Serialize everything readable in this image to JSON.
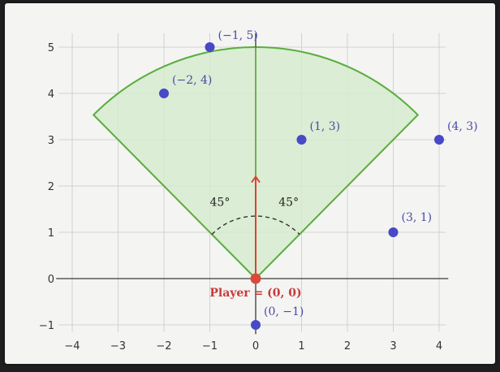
{
  "diagram": {
    "x_ticks": [
      "−4",
      "−3",
      "−2",
      "−1",
      "0",
      "1",
      "2",
      "3",
      "4"
    ],
    "y_ticks": [
      "−1",
      "0",
      "1",
      "2",
      "3",
      "4",
      "5"
    ],
    "x_range": [
      -4,
      4
    ],
    "y_range": [
      -1,
      5
    ],
    "cone": {
      "radius": 5,
      "half_angle_deg": 45,
      "fill": "#d6ebcf",
      "stroke": "#5aad3f"
    },
    "angle_labels": [
      "45°",
      "45°"
    ],
    "player": {
      "label": "Player",
      "coords": "(0, 0)",
      "x": 0,
      "y": 0,
      "color": "#d94a3c"
    },
    "facing_arrow": {
      "length": 2.2,
      "color": "#e0412f"
    },
    "points": [
      {
        "label": "(−1, 5)",
        "x": -1,
        "y": 5
      },
      {
        "label": "(−2, 4)",
        "x": -2,
        "y": 4
      },
      {
        "label": "(1, 3)",
        "x": 1,
        "y": 3
      },
      {
        "label": "(4, 3)",
        "x": 4,
        "y": 3
      },
      {
        "label": "(3, 1)",
        "x": 3,
        "y": 1
      },
      {
        "label": "(0, −1)",
        "x": 0,
        "y": -1
      }
    ],
    "point_color": "#4848c8"
  }
}
